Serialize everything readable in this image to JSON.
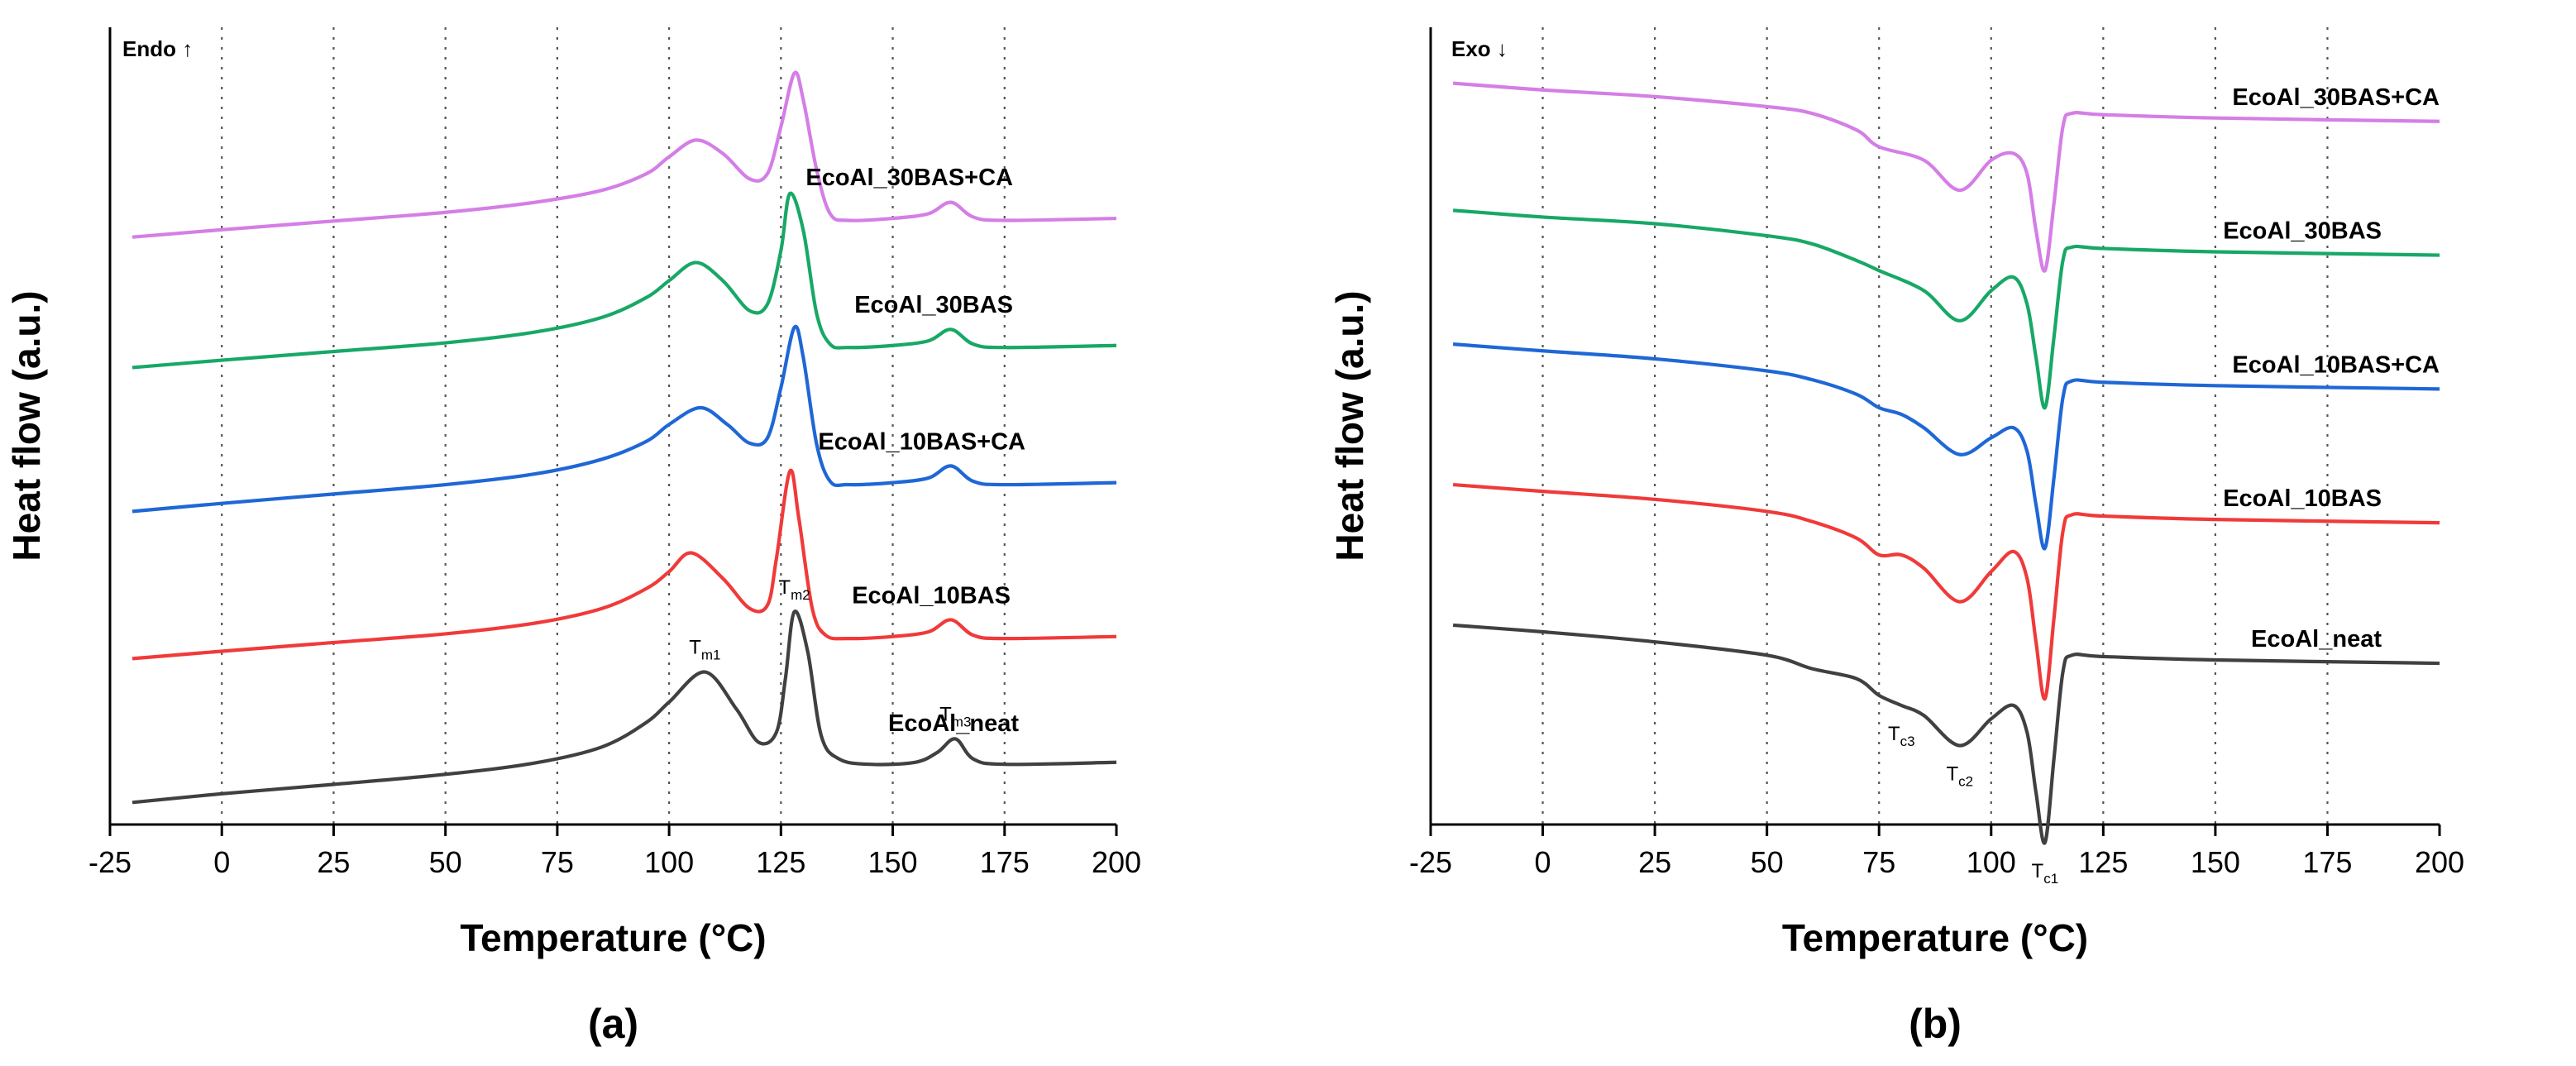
{
  "chart_data": [
    {
      "type": "line",
      "panel_label": "(a)",
      "direction_label": "Endo ↑",
      "xlabel": "Temperature (°C)",
      "ylabel": "Heat flow (a.u.)",
      "xlim": [
        -25,
        200
      ],
      "ylim": [
        0,
        10
      ],
      "grid": "vertical dotted",
      "x_ticks": [
        "-25",
        "0",
        "25",
        "50",
        "75",
        "100",
        "125",
        "150",
        "175",
        "200"
      ],
      "series": [
        {
          "name": "EcoAl_30BAS+CA",
          "color": "#d47ee6",
          "x": [
            -20,
            0,
            25,
            50,
            70,
            85,
            95,
            100,
            106,
            112,
            118,
            122,
            125,
            128,
            130,
            133,
            136,
            140,
            150,
            158,
            163,
            168,
            175,
            200
          ],
          "y": [
            8.1,
            8.21,
            8.34,
            8.47,
            8.62,
            8.8,
            9.05,
            9.3,
            9.55,
            9.35,
            8.97,
            9.05,
            9.75,
            10.55,
            10.15,
            9.1,
            8.45,
            8.35,
            8.38,
            8.45,
            8.62,
            8.4,
            8.35,
            8.38
          ]
        },
        {
          "name": "EcoAl_30BAS",
          "color": "#18a866",
          "x": [
            -20,
            0,
            25,
            50,
            70,
            85,
            95,
            100,
            106,
            112,
            118,
            122,
            125,
            127,
            130,
            133,
            136,
            140,
            150,
            158,
            163,
            168,
            175,
            200
          ],
          "y": [
            6.15,
            6.26,
            6.39,
            6.52,
            6.68,
            6.9,
            7.2,
            7.45,
            7.72,
            7.45,
            7.0,
            7.1,
            7.9,
            8.75,
            8.2,
            6.95,
            6.5,
            6.45,
            6.48,
            6.55,
            6.72,
            6.5,
            6.45,
            6.48
          ]
        },
        {
          "name": "EcoAl_10BAS+CA",
          "color": "#1f67d6",
          "x": [
            -20,
            0,
            25,
            50,
            70,
            85,
            95,
            100,
            107,
            113,
            118,
            122,
            125,
            128,
            130,
            133,
            136,
            140,
            150,
            158,
            163,
            168,
            175,
            200
          ],
          "y": [
            4.0,
            4.12,
            4.26,
            4.4,
            4.56,
            4.78,
            5.05,
            5.3,
            5.55,
            5.3,
            5.02,
            5.1,
            5.85,
            6.75,
            6.3,
            5.0,
            4.45,
            4.4,
            4.43,
            4.5,
            4.68,
            4.45,
            4.4,
            4.43
          ]
        },
        {
          "name": "EcoAl_10BAS",
          "color": "#f03a3a",
          "x": [
            -20,
            0,
            25,
            50,
            70,
            85,
            95,
            100,
            105,
            112,
            118,
            122,
            124,
            127,
            129,
            132,
            135,
            140,
            150,
            158,
            163,
            168,
            175,
            200
          ],
          "y": [
            1.8,
            1.91,
            2.04,
            2.17,
            2.33,
            2.55,
            2.85,
            3.1,
            3.38,
            3.0,
            2.55,
            2.6,
            3.3,
            4.6,
            3.9,
            2.55,
            2.15,
            2.1,
            2.13,
            2.2,
            2.38,
            2.15,
            2.1,
            2.13
          ]
        },
        {
          "name": "EcoAl_neat",
          "color": "#404040",
          "x": [
            -20,
            0,
            25,
            50,
            70,
            85,
            95,
            100,
            108,
            115,
            120,
            124,
            126,
            128,
            131,
            134,
            138,
            145,
            155,
            160,
            164,
            168,
            175,
            200
          ],
          "y": [
            -0.35,
            -0.22,
            -0.08,
            0.07,
            0.24,
            0.48,
            0.85,
            1.15,
            1.6,
            1.05,
            0.55,
            0.7,
            1.5,
            2.5,
            1.9,
            0.65,
            0.3,
            0.22,
            0.25,
            0.4,
            0.6,
            0.3,
            0.22,
            0.25
          ]
        }
      ],
      "annotations": [
        {
          "main": "T",
          "sub": "m1",
          "x": 108,
          "y": 1.6
        },
        {
          "main": "T",
          "sub": "m2",
          "x": 128,
          "y": 2.5
        },
        {
          "main": "T",
          "sub": "m3",
          "x": 164,
          "y": 0.6
        }
      ]
    },
    {
      "type": "line",
      "panel_label": "(b)",
      "direction_label": "Exo ↓",
      "xlabel": "Temperature (°C)",
      "ylabel": "Heat flow (a.u.)",
      "xlim": [
        -25,
        200
      ],
      "ylim": [
        0,
        10
      ],
      "grid": "vertical dotted",
      "x_ticks": [
        "-25",
        "0",
        "25",
        "50",
        "75",
        "100",
        "125",
        "150",
        "175",
        "200"
      ],
      "series": [
        {
          "name": "EcoAl_30BAS+CA",
          "color": "#d47ee6",
          "x": [
            -20,
            0,
            25,
            50,
            60,
            70,
            75,
            85,
            93,
            100,
            105,
            108,
            110,
            112,
            114,
            116,
            118,
            125,
            150,
            200
          ],
          "y": [
            10.4,
            10.3,
            10.2,
            10.05,
            9.95,
            9.7,
            9.45,
            9.25,
            8.8,
            9.25,
            9.35,
            9.05,
            8.2,
            7.6,
            8.6,
            9.75,
            9.95,
            9.93,
            9.88,
            9.83
          ]
        },
        {
          "name": "EcoAl_30BAS",
          "color": "#18a866",
          "x": [
            -20,
            0,
            25,
            50,
            60,
            70,
            75,
            85,
            93,
            100,
            105,
            108,
            110,
            112,
            114,
            116,
            118,
            125,
            150,
            200
          ],
          "y": [
            8.5,
            8.4,
            8.3,
            8.12,
            8.0,
            7.75,
            7.6,
            7.3,
            6.85,
            7.3,
            7.5,
            7.1,
            6.3,
            5.55,
            6.6,
            7.75,
            7.95,
            7.93,
            7.88,
            7.83
          ]
        },
        {
          "name": "EcoAl_10BAS+CA",
          "color": "#1f67d6",
          "x": [
            -20,
            0,
            25,
            50,
            60,
            70,
            75,
            80,
            85,
            93,
            100,
            105,
            108,
            110,
            112,
            114,
            116,
            118,
            125,
            150,
            200
          ],
          "y": [
            6.5,
            6.4,
            6.28,
            6.1,
            5.97,
            5.75,
            5.55,
            5.45,
            5.25,
            4.85,
            5.1,
            5.25,
            4.9,
            4.1,
            3.45,
            4.5,
            5.7,
            5.95,
            5.93,
            5.88,
            5.83
          ]
        },
        {
          "name": "EcoAl_10BAS",
          "color": "#f03a3a",
          "x": [
            -20,
            0,
            25,
            50,
            60,
            70,
            75,
            80,
            85,
            93,
            100,
            105,
            108,
            110,
            112,
            114,
            116,
            118,
            125,
            150,
            200
          ],
          "y": [
            4.4,
            4.3,
            4.18,
            4.0,
            3.85,
            3.6,
            3.35,
            3.35,
            3.15,
            2.65,
            3.1,
            3.4,
            3.0,
            2.05,
            1.2,
            2.4,
            3.7,
            3.95,
            3.93,
            3.88,
            3.83
          ]
        },
        {
          "name": "EcoAl_neat",
          "color": "#404040",
          "x": [
            -20,
            0,
            25,
            50,
            60,
            70,
            75,
            80,
            85,
            93,
            100,
            105,
            108,
            110,
            112,
            114,
            116,
            118,
            125,
            150,
            200
          ],
          "y": [
            2.3,
            2.2,
            2.05,
            1.85,
            1.65,
            1.5,
            1.25,
            1.1,
            0.95,
            0.5,
            0.9,
            1.1,
            0.7,
            -0.2,
            -0.95,
            0.3,
            1.6,
            1.85,
            1.83,
            1.78,
            1.73
          ]
        }
      ],
      "annotations": [
        {
          "main": "T",
          "sub": "c3",
          "x": 80,
          "y": 1.1
        },
        {
          "main": "T",
          "sub": "c2",
          "x": 93,
          "y": 0.5
        },
        {
          "main": "T",
          "sub": "c1",
          "x": 112,
          "y": -0.95
        }
      ]
    }
  ]
}
